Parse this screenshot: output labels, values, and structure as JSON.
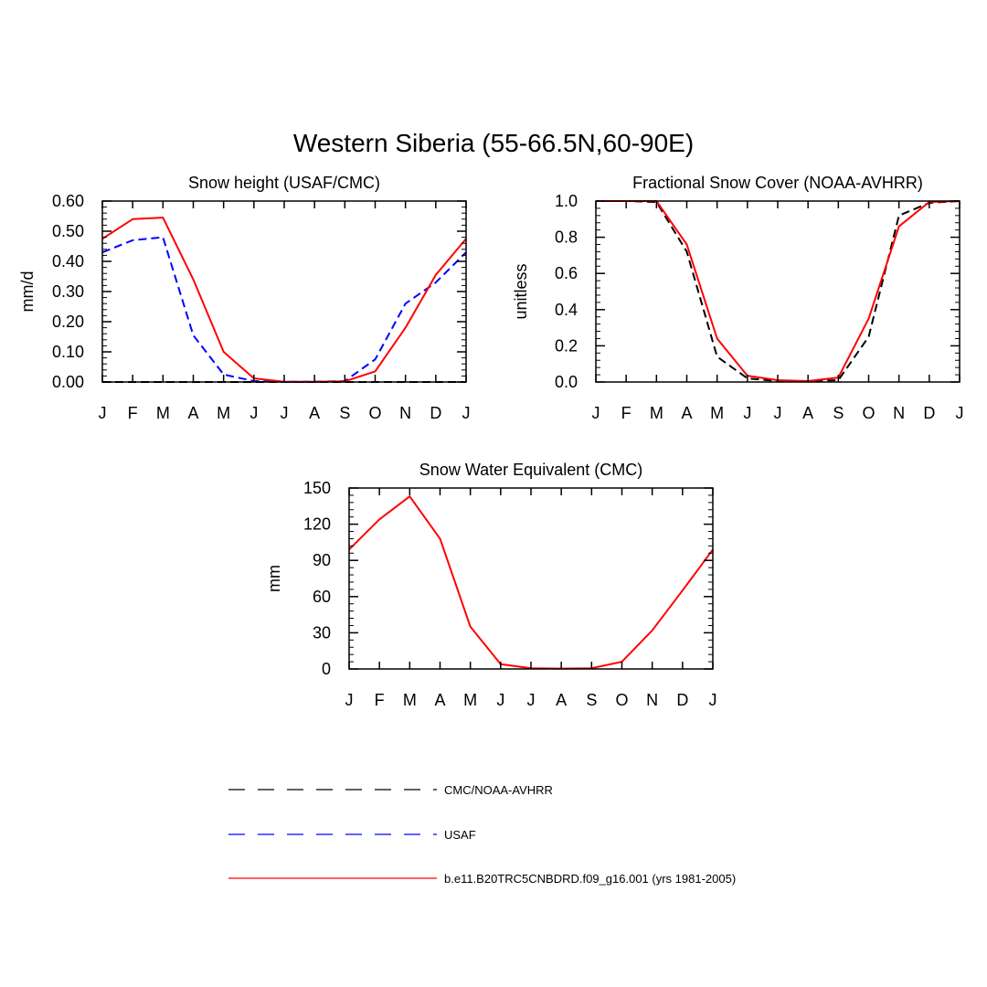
{
  "title": "Western Siberia (55-66.5N,60-90E)",
  "chart_data": [
    {
      "type": "line",
      "title": "Snow height (USAF/CMC)",
      "ylabel": "mm/d",
      "xlabel": "",
      "categories": [
        "J",
        "F",
        "M",
        "A",
        "M",
        "J",
        "J",
        "A",
        "S",
        "O",
        "N",
        "D",
        "J"
      ],
      "ylim": [
        0,
        0.6
      ],
      "yticks": [
        0,
        0.1,
        0.2,
        0.3,
        0.4,
        0.5,
        0.6
      ],
      "ytick_labels": [
        "0.00",
        "0.10",
        "0.20",
        "0.30",
        "0.40",
        "0.50",
        "0.60"
      ],
      "grid": false,
      "series": [
        {
          "name": "CMC/NOAA-AVHRR",
          "color": "#000000",
          "dash": "dashed",
          "values": [
            0,
            0,
            0,
            0,
            0,
            0,
            0,
            0,
            0,
            0,
            0,
            0,
            0
          ]
        },
        {
          "name": "USAF",
          "color": "#0000ff",
          "dash": "dashed",
          "values": [
            0.43,
            0.47,
            0.48,
            0.155,
            0.025,
            0.003,
            0.001,
            0.001,
            0.003,
            0.075,
            0.26,
            0.33,
            0.43
          ]
        },
        {
          "name": "b.e11.B20TRC5CNBDRD.f09_g16.001 (yrs 1981-2005)",
          "color": "#ff0000",
          "dash": "solid",
          "values": [
            0.475,
            0.54,
            0.545,
            0.34,
            0.1,
            0.012,
            0.001,
            0.001,
            0.002,
            0.035,
            0.18,
            0.355,
            0.475
          ]
        }
      ]
    },
    {
      "type": "line",
      "title": "Fractional Snow Cover (NOAA-AVHRR)",
      "ylabel": "unitless",
      "xlabel": "",
      "categories": [
        "J",
        "F",
        "M",
        "A",
        "M",
        "J",
        "J",
        "A",
        "S",
        "O",
        "N",
        "D",
        "J"
      ],
      "ylim": [
        0,
        1
      ],
      "yticks": [
        0,
        0.2,
        0.4,
        0.6,
        0.8,
        1.0
      ],
      "ytick_labels": [
        "0.0",
        "0.2",
        "0.4",
        "0.6",
        "0.8",
        "1.0"
      ],
      "grid": false,
      "series": [
        {
          "name": "CMC/NOAA-AVHRR",
          "color": "#000000",
          "dash": "dashed",
          "values": [
            1.0,
            1.0,
            0.995,
            0.72,
            0.14,
            0.02,
            0.005,
            0.005,
            0.01,
            0.25,
            0.92,
            0.99,
            1.0
          ]
        },
        {
          "name": "b.e11.B20TRC5CNBDRD.f09_g16.001 (yrs 1981-2005)",
          "color": "#ff0000",
          "dash": "solid",
          "values": [
            1.0,
            1.0,
            1.0,
            0.76,
            0.24,
            0.035,
            0.01,
            0.005,
            0.025,
            0.35,
            0.86,
            0.995,
            1.0
          ]
        }
      ]
    },
    {
      "type": "line",
      "title": "Snow Water Equivalent (CMC)",
      "ylabel": "mm",
      "xlabel": "",
      "categories": [
        "J",
        "F",
        "M",
        "A",
        "M",
        "J",
        "J",
        "A",
        "S",
        "O",
        "N",
        "D",
        "J"
      ],
      "ylim": [
        0,
        150
      ],
      "yticks": [
        0,
        30,
        60,
        90,
        120,
        150
      ],
      "ytick_labels": [
        "0",
        "30",
        "60",
        "90",
        "120",
        "150"
      ],
      "grid": false,
      "series": [
        {
          "name": "b.e11.B20TRC5CNBDRD.f09_g16.001 (yrs 1981-2005)",
          "color": "#ff0000",
          "dash": "solid",
          "values": [
            99,
            124,
            143,
            108,
            35,
            4,
            0.5,
            0.3,
            0.6,
            6,
            32,
            65,
            99
          ]
        }
      ]
    }
  ],
  "legend": {
    "placement": "bottom-center",
    "items": [
      {
        "label": "CMC/NOAA-AVHRR",
        "color": "#000000",
        "dash": "long-dashed"
      },
      {
        "label": "USAF",
        "color": "#0000ff",
        "dash": "long-dashed"
      },
      {
        "label": "b.e11.B20TRC5CNBDRD.f09_g16.001 (yrs 1981-2005)",
        "color": "#ff0000",
        "dash": "solid"
      }
    ]
  }
}
